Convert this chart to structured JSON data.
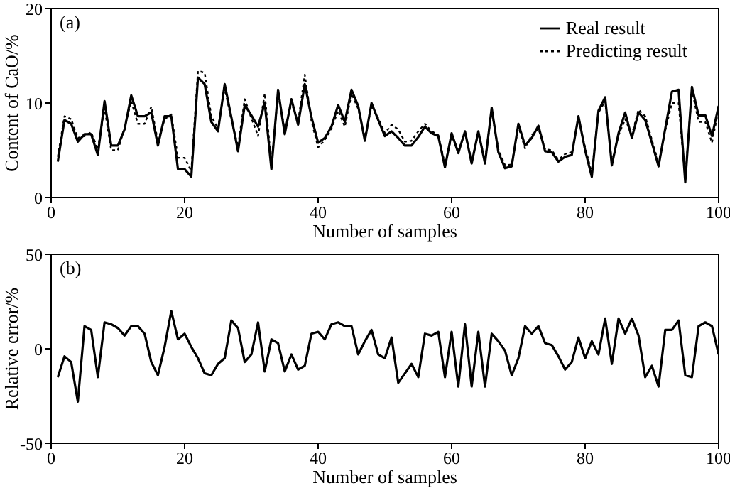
{
  "chart_data": [
    {
      "type": "line",
      "xlabel": "Number of samples",
      "ylabel": "Content of CaO/%",
      "annotations": [
        "(a)"
      ],
      "xlim": [
        0,
        100
      ],
      "xticks": [
        0,
        20,
        40,
        60,
        80,
        100
      ],
      "ylim": [
        0,
        20
      ],
      "yticks": [
        0,
        10,
        20
      ],
      "grid": false,
      "legend": "top right",
      "marker": "none",
      "x": [
        1,
        2,
        3,
        4,
        5,
        6,
        7,
        8,
        9,
        10,
        11,
        12,
        13,
        14,
        15,
        16,
        17,
        18,
        19,
        20,
        21,
        22,
        23,
        24,
        25,
        26,
        27,
        28,
        29,
        30,
        31,
        32,
        33,
        34,
        35,
        36,
        37,
        38,
        39,
        40,
        41,
        42,
        43,
        44,
        45,
        46,
        47,
        48,
        49,
        50,
        51,
        52,
        53,
        54,
        55,
        56,
        57,
        58,
        59,
        60,
        61,
        62,
        63,
        64,
        65,
        66,
        67,
        68,
        69,
        70,
        71,
        72,
        73,
        74,
        75,
        76,
        77,
        78,
        79,
        80,
        81,
        82,
        83,
        84,
        85,
        86,
        87,
        88,
        89,
        90,
        91,
        92,
        93,
        94,
        95,
        96,
        97,
        98,
        99,
        100
      ],
      "series": [
        {
          "name": "Real result",
          "color": "#000000",
          "line_style": "solid",
          "values": [
            3.8,
            8.2,
            7.8,
            5.9,
            6.7,
            6.7,
            4.5,
            10.2,
            5.5,
            5.5,
            7.2,
            10.8,
            8.6,
            8.6,
            9,
            5.5,
            8.6,
            8.6,
            3,
            3,
            2.2,
            12.7,
            12,
            8,
            7,
            12,
            8.5,
            4.9,
            9.8,
            8.7,
            7.5,
            10,
            3,
            11.4,
            6.7,
            10.4,
            7.7,
            12,
            8.5,
            5.8,
            6.3,
            7.5,
            9.8,
            8,
            11.4,
            9.7,
            6,
            10,
            8.2,
            6.5,
            7,
            6.3,
            5.5,
            5.5,
            6.4,
            7.5,
            6.8,
            6.5,
            3.2,
            6.8,
            4.7,
            7,
            3.6,
            7,
            3.6,
            9.5,
            4.8,
            3.1,
            3.3,
            7.8,
            5.5,
            6.3,
            7.6,
            4.9,
            4.8,
            3.8,
            4.3,
            4.5,
            8.6,
            5,
            2.2,
            9.2,
            10.6,
            3.4,
            6.8,
            9,
            6.3,
            9,
            8.2,
            5.8,
            3.3,
            7.3,
            11.2,
            11.4,
            1.6,
            11.7,
            8.7,
            8.7,
            6.5,
            9.7
          ]
        },
        {
          "name": "Predicting result",
          "color": "#000000",
          "line_style": "dotted",
          "values": [
            4.3,
            8.6,
            8.3,
            6.3,
            6.5,
            6.9,
            5.1,
            9.5,
            5,
            5,
            7.4,
            10.2,
            7.8,
            7.8,
            9.6,
            5.9,
            8.3,
            8.8,
            4.2,
            4.2,
            2.8,
            13.4,
            13.2,
            8.6,
            7.3,
            11.6,
            8.2,
            5.4,
            10.4,
            8.4,
            6.5,
            11,
            3.5,
            11,
            7.1,
            10,
            8,
            13,
            8.1,
            5.3,
            6.1,
            7.3,
            9.2,
            7.5,
            11,
            9.4,
            6.4,
            9.6,
            8.4,
            6.8,
            7.7,
            7.2,
            5.9,
            6,
            7,
            7.8,
            7,
            6.6,
            3.5,
            6.5,
            5,
            6.8,
            3.9,
            6.8,
            3.9,
            9.2,
            5.1,
            3.4,
            3.5,
            7.5,
            5.2,
            6.6,
            7.3,
            5.1,
            5,
            4,
            4.6,
            4.8,
            8.3,
            5.3,
            2.6,
            9,
            10.2,
            3.7,
            6.6,
            8.3,
            6.6,
            9.3,
            8.6,
            6.1,
            3.6,
            7.1,
            10,
            10,
            2,
            11.4,
            8,
            8,
            5.8,
            9.4
          ]
        }
      ]
    },
    {
      "type": "line",
      "xlabel": "Number of samples",
      "ylabel": "Relative error/%",
      "annotations": [
        "(b)"
      ],
      "xlim": [
        0,
        100
      ],
      "xticks": [
        0,
        20,
        40,
        60,
        80,
        100
      ],
      "ylim": [
        -50,
        50
      ],
      "yticks": [
        -50,
        0,
        50
      ],
      "grid": false,
      "legend": false,
      "marker": "none",
      "x": [
        1,
        2,
        3,
        4,
        5,
        6,
        7,
        8,
        9,
        10,
        11,
        12,
        13,
        14,
        15,
        16,
        17,
        18,
        19,
        20,
        21,
        22,
        23,
        24,
        25,
        26,
        27,
        28,
        29,
        30,
        31,
        32,
        33,
        34,
        35,
        36,
        37,
        38,
        39,
        40,
        41,
        42,
        43,
        44,
        45,
        46,
        47,
        48,
        49,
        50,
        51,
        52,
        53,
        54,
        55,
        56,
        57,
        58,
        59,
        60,
        61,
        62,
        63,
        64,
        65,
        66,
        67,
        68,
        69,
        70,
        71,
        72,
        73,
        74,
        75,
        76,
        77,
        78,
        79,
        80,
        81,
        82,
        83,
        84,
        85,
        86,
        87,
        88,
        89,
        90,
        91,
        92,
        93,
        94,
        95,
        96,
        97,
        98,
        99,
        100
      ],
      "series": [
        {
          "color": "#000000",
          "line_style": "solid",
          "values": [
            -15,
            -4,
            -7,
            -28,
            12,
            10,
            -15,
            14,
            13,
            11,
            7,
            12,
            12,
            8,
            -7,
            -14,
            1,
            20,
            5,
            8,
            1,
            -5,
            -13,
            -14,
            -8,
            -5,
            15,
            11,
            -7,
            -3,
            14,
            -12,
            5,
            3,
            -12,
            -3,
            -11,
            -9,
            8,
            9,
            5,
            13,
            14,
            12,
            12,
            -3,
            4,
            10,
            -3,
            -5,
            6,
            -18,
            -13,
            -8,
            -15,
            8,
            7,
            9,
            -15,
            9,
            -20,
            13,
            -20,
            9,
            -20,
            8,
            4,
            -1,
            -14,
            -5,
            12,
            8,
            12,
            3,
            2,
            -4,
            -11,
            -7,
            6,
            -5,
            4,
            -3,
            16,
            -8,
            16,
            8,
            16,
            7,
            -15,
            -9,
            -20,
            10,
            10,
            15,
            -14,
            -15,
            12,
            14,
            12,
            -3
          ]
        }
      ]
    }
  ]
}
